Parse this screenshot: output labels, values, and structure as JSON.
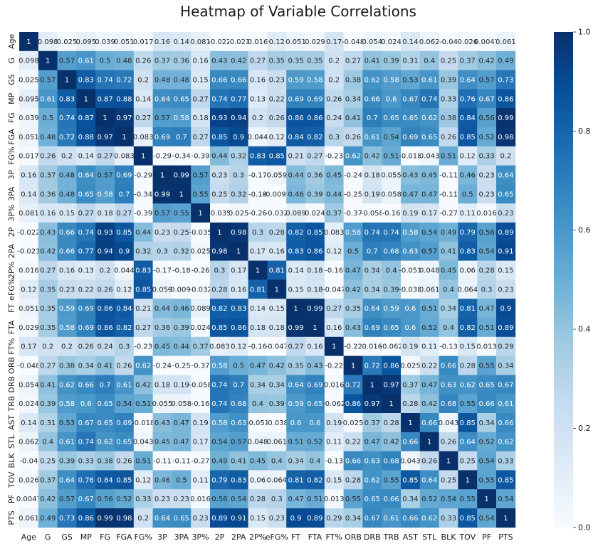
{
  "chart_data": {
    "type": "heatmap",
    "title": "Heatmap of Variable Correlations",
    "variables": [
      "Age",
      "G",
      "GS",
      "MP",
      "FG",
      "FGA",
      "FG%",
      "3P",
      "3PA",
      "3P%",
      "2P",
      "2PA",
      "2P%",
      "eFG%",
      "FT",
      "FTA",
      "FT%",
      "ORB",
      "DRB",
      "TRB",
      "AST",
      "STL",
      "BLK",
      "TOV",
      "PF",
      "PTS"
    ],
    "cell_labels": [
      [
        "1",
        "0.098",
        "0.025",
        "0.095",
        "0.039",
        "0.051",
        "0.017",
        "0.16",
        "0.14",
        "0.081",
        "-0.022",
        "-0.021",
        "0.016",
        "0.12",
        "0.051",
        "0.029",
        "0.17",
        "-0.048",
        "0.054",
        "0.024",
        "0.14",
        "0.062",
        "-0.04",
        "0.026",
        "0.0047",
        "0.061"
      ],
      [
        "0.098",
        "1",
        "0.57",
        "0.61",
        "0.5",
        "0.48",
        "0.26",
        "0.37",
        "0.36",
        "0.16",
        "0.43",
        "0.42",
        "0.27",
        "0.35",
        "0.35",
        "0.35",
        "0.2",
        "0.27",
        "0.41",
        "0.39",
        "0.31",
        "0.4",
        "0.25",
        "0.37",
        "0.42",
        "0.49"
      ],
      [
        "0.025",
        "0.57",
        "1",
        "0.83",
        "0.74",
        "0.72",
        "0.2",
        "0.48",
        "0.48",
        "0.15",
        "0.66",
        "0.66",
        "0.16",
        "0.23",
        "0.59",
        "0.58",
        "0.2",
        "0.38",
        "0.62",
        "0.58",
        "0.53",
        "0.61",
        "0.39",
        "0.64",
        "0.57",
        "0.73"
      ],
      [
        "0.095",
        "0.61",
        "0.83",
        "1",
        "0.87",
        "0.88",
        "0.14",
        "0.64",
        "0.65",
        "0.27",
        "0.74",
        "0.77",
        "0.13",
        "0.22",
        "0.69",
        "0.69",
        "0.26",
        "0.34",
        "0.66",
        "0.6",
        "0.67",
        "0.74",
        "0.33",
        "0.76",
        "0.67",
        "0.86"
      ],
      [
        "0.039",
        "0.5",
        "0.74",
        "0.87",
        "1",
        "0.97",
        "0.27",
        "0.57",
        "0.58",
        "0.18",
        "0.93",
        "0.94",
        "0.2",
        "0.26",
        "0.86",
        "0.86",
        "0.24",
        "0.41",
        "0.7",
        "0.65",
        "0.65",
        "0.62",
        "0.38",
        "0.84",
        "0.56",
        "0.99"
      ],
      [
        "0.051",
        "0.48",
        "0.72",
        "0.88",
        "0.97",
        "1",
        "0.083",
        "0.69",
        "0.7",
        "0.27",
        "0.85",
        "0.9",
        "0.044",
        "0.12",
        "0.84",
        "0.82",
        "0.3",
        "0.26",
        "0.61",
        "0.54",
        "0.69",
        "0.65",
        "0.26",
        "0.85",
        "0.52",
        "0.98"
      ],
      [
        "0.017",
        "0.26",
        "0.2",
        "0.14",
        "0.27",
        "0.083",
        "1",
        "-0.29",
        "-0.34",
        "-0.39",
        "0.44",
        "0.32",
        "0.83",
        "0.85",
        "0.21",
        "0.27",
        "-0.23",
        "0.62",
        "0.42",
        "0.51",
        "-0.018",
        "0.043",
        "0.51",
        "0.12",
        "0.33",
        "0.2"
      ],
      [
        "0.16",
        "0.37",
        "0.48",
        "0.64",
        "0.57",
        "0.69",
        "-0.29",
        "1",
        "0.99",
        "0.57",
        "0.23",
        "0.3",
        "-0.17",
        "0.059",
        "0.44",
        "0.36",
        "0.45",
        "-0.24",
        "0.18",
        "0.055",
        "0.43",
        "0.45",
        "-0.11",
        "0.46",
        "0.23",
        "0.64"
      ],
      [
        "0.14",
        "0.36",
        "0.48",
        "0.65",
        "0.58",
        "0.7",
        "-0.34",
        "0.99",
        "1",
        "0.55",
        "0.25",
        "0.32",
        "-0.18",
        "-0.0099",
        "0.46",
        "0.39",
        "0.44",
        "-0.25",
        "0.19",
        "0.058",
        "0.47",
        "0.47",
        "-0.11",
        "0.5",
        "0.23",
        "0.65"
      ],
      [
        "0.081",
        "0.16",
        "0.15",
        "0.27",
        "0.18",
        "0.27",
        "-0.39",
        "0.57",
        "0.55",
        "1",
        "-0.035",
        "0.025",
        "-0.26",
        "-0.032",
        "0.089",
        "0.024",
        "0.37",
        "-0.37",
        "-0.058",
        "-0.16",
        "0.19",
        "0.17",
        "-0.27",
        "0.11",
        "0.016",
        "0.23"
      ],
      [
        "-0.022",
        "0.43",
        "0.66",
        "0.74",
        "0.93",
        "0.85",
        "0.44",
        "0.23",
        "0.25",
        "-0.035",
        "1",
        "0.98",
        "0.3",
        "0.28",
        "0.82",
        "0.85",
        "0.083",
        "0.58",
        "0.74",
        "0.74",
        "0.58",
        "0.54",
        "0.49",
        "0.79",
        "0.56",
        "0.89"
      ],
      [
        "-0.021",
        "0.42",
        "0.66",
        "0.77",
        "0.94",
        "0.9",
        "0.32",
        "0.3",
        "0.32",
        "0.025",
        "0.98",
        "1",
        "0.17",
        "0.16",
        "0.83",
        "0.86",
        "0.12",
        "0.5",
        "0.7",
        "0.68",
        "0.63",
        "0.57",
        "0.41",
        "0.83",
        "0.54",
        "0.91"
      ],
      [
        "0.016",
        "0.27",
        "0.16",
        "0.13",
        "0.2",
        "0.044",
        "0.83",
        "-0.17",
        "-0.18",
        "-0.26",
        "0.3",
        "0.17",
        "1",
        "0.81",
        "0.14",
        "0.18",
        "-0.16",
        "0.47",
        "0.34",
        "0.4",
        "-0.051",
        "0.048",
        "0.45",
        "0.06",
        "0.28",
        "0.15"
      ],
      [
        "0.12",
        "0.35",
        "0.23",
        "0.22",
        "0.26",
        "0.12",
        "0.85",
        "0.059",
        "-0.0099",
        "-0.032",
        "0.28",
        "0.16",
        "0.81",
        "1",
        "0.15",
        "0.18",
        "-0.047",
        "0.42",
        "0.34",
        "0.39",
        "-0.038",
        "0.061",
        "0.4",
        "0.064",
        "0.3",
        "0.23"
      ],
      [
        "0.051",
        "0.35",
        "0.59",
        "0.69",
        "0.86",
        "0.84",
        "0.21",
        "0.44",
        "0.46",
        "0.089",
        "0.82",
        "0.83",
        "0.14",
        "0.15",
        "1",
        "0.99",
        "0.27",
        "0.35",
        "0.64",
        "0.59",
        "0.6",
        "0.51",
        "0.34",
        "0.81",
        "0.47",
        "0.9"
      ],
      [
        "0.029",
        "0.35",
        "0.58",
        "0.69",
        "0.86",
        "0.82",
        "0.27",
        "0.36",
        "0.39",
        "0.024",
        "0.85",
        "0.86",
        "0.18",
        "0.18",
        "0.99",
        "1",
        "0.16",
        "0.43",
        "0.69",
        "0.65",
        "0.6",
        "0.52",
        "0.4",
        "0.82",
        "0.51",
        "0.89"
      ],
      [
        "0.17",
        "0.2",
        "0.2",
        "0.26",
        "0.24",
        "0.3",
        "-0.23",
        "0.45",
        "0.44",
        "0.37",
        "0.083",
        "0.12",
        "-0.16",
        "-0.047",
        "0.27",
        "0.16",
        "1",
        "-0.22",
        "0.016",
        "-0.062",
        "0.19",
        "0.11",
        "-0.13",
        "0.15",
        "0.013",
        "0.29"
      ],
      [
        "-0.048",
        "0.27",
        "0.38",
        "0.34",
        "0.41",
        "0.26",
        "0.62",
        "-0.24",
        "-0.25",
        "-0.37",
        "0.58",
        "0.5",
        "0.47",
        "0.42",
        "0.35",
        "0.43",
        "-0.22",
        "1",
        "0.72",
        "0.86",
        "0.025",
        "0.22",
        "0.66",
        "0.28",
        "0.55",
        "0.34"
      ],
      [
        "0.054",
        "0.41",
        "0.62",
        "0.66",
        "0.7",
        "0.61",
        "0.42",
        "0.18",
        "0.19",
        "-0.058",
        "0.74",
        "0.7",
        "0.34",
        "0.34",
        "0.64",
        "0.69",
        "0.016",
        "0.72",
        "1",
        "0.97",
        "0.37",
        "0.47",
        "0.63",
        "0.62",
        "0.65",
        "0.67"
      ],
      [
        "0.024",
        "0.39",
        "0.58",
        "0.6",
        "0.65",
        "0.54",
        "0.51",
        "0.055",
        "0.058",
        "-0.16",
        "0.74",
        "0.68",
        "0.4",
        "0.39",
        "0.59",
        "0.65",
        "-0.062",
        "0.86",
        "0.97",
        "1",
        "0.28",
        "0.42",
        "0.68",
        "0.55",
        "0.66",
        "0.61"
      ],
      [
        "0.14",
        "0.31",
        "0.53",
        "0.67",
        "0.65",
        "0.69",
        "-0.018",
        "0.43",
        "0.47",
        "0.19",
        "0.58",
        "0.63",
        "-0.051",
        "-0.038",
        "0.6",
        "0.6",
        "0.19",
        "0.025",
        "0.37",
        "0.28",
        "1",
        "0.66",
        "0.043",
        "0.85",
        "0.34",
        "0.66"
      ],
      [
        "0.062",
        "0.4",
        "0.61",
        "0.74",
        "0.62",
        "0.65",
        "0.043",
        "0.45",
        "0.47",
        "0.17",
        "0.54",
        "0.57",
        "0.048",
        "0.061",
        "0.51",
        "0.52",
        "0.11",
        "0.22",
        "0.47",
        "0.42",
        "0.66",
        "1",
        "0.26",
        "0.64",
        "0.52",
        "0.62"
      ],
      [
        "-0.04",
        "0.25",
        "0.39",
        "0.33",
        "0.38",
        "0.26",
        "0.51",
        "-0.11",
        "-0.11",
        "-0.27",
        "0.49",
        "0.41",
        "0.45",
        "0.4",
        "0.34",
        "0.4",
        "-0.13",
        "0.66",
        "0.63",
        "0.68",
        "0.043",
        "0.26",
        "1",
        "0.25",
        "0.54",
        "0.33"
      ],
      [
        "0.026",
        "0.37",
        "0.64",
        "0.76",
        "0.84",
        "0.85",
        "0.12",
        "0.46",
        "0.5",
        "0.11",
        "0.79",
        "0.83",
        "0.06",
        "0.064",
        "0.81",
        "0.82",
        "0.15",
        "0.28",
        "0.62",
        "0.55",
        "0.85",
        "0.64",
        "0.25",
        "1",
        "0.55",
        "0.85"
      ],
      [
        "0.0047",
        "0.42",
        "0.57",
        "0.67",
        "0.56",
        "0.52",
        "0.33",
        "0.23",
        "0.23",
        "0.016",
        "0.56",
        "0.54",
        "0.28",
        "0.3",
        "0.47",
        "0.51",
        "0.013",
        "0.55",
        "0.65",
        "0.66",
        "0.34",
        "0.52",
        "0.54",
        "0.55",
        "1",
        "0.54"
      ],
      [
        "0.061",
        "0.49",
        "0.73",
        "0.86",
        "0.99",
        "0.98",
        "0.2",
        "0.64",
        "0.65",
        "0.23",
        "0.89",
        "0.91",
        "0.15",
        "0.23",
        "0.9",
        "0.89",
        "0.29",
        "0.34",
        "0.67",
        "0.61",
        "0.66",
        "0.62",
        "0.33",
        "0.85",
        "0.54",
        "1"
      ]
    ],
    "color_scale": {
      "name": "Blues",
      "min": 0.0,
      "max": 1.0,
      "ticks": [
        "0.0",
        "0.2",
        "0.4",
        "0.6",
        "0.8",
        "1.0"
      ],
      "low_color": "#f7fbff",
      "high_color": "#08306b"
    },
    "xlabel": "",
    "ylabel": ""
  }
}
